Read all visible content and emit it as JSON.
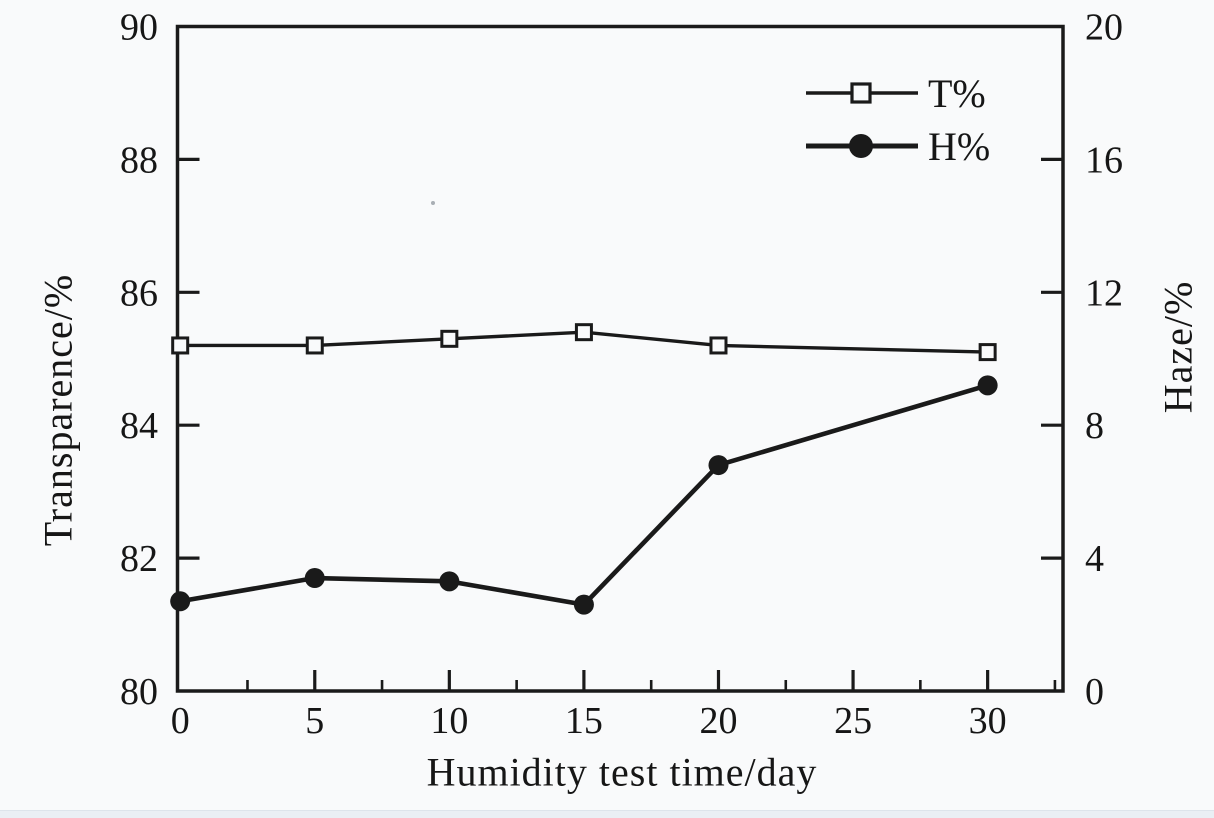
{
  "chart_data": {
    "type": "line",
    "title": "",
    "xlabel": "Humidity test time/day",
    "ylabel_left": "Transparence/%",
    "ylabel_right": "Haze/%",
    "xlim": [
      -0.1,
      32.8
    ],
    "ylim_left": [
      80,
      90
    ],
    "ylim_right": [
      0,
      20
    ],
    "x_major_ticks": [
      0,
      5,
      10,
      15,
      20,
      25,
      30
    ],
    "x_minor_ticks": [
      2.5,
      7.5,
      12.5,
      17.5,
      22.5,
      27.5,
      32.5
    ],
    "left_axis_ticks": [
      80,
      82,
      84,
      86,
      88,
      90
    ],
    "right_axis_ticks": [
      0,
      4,
      8,
      12,
      16,
      20
    ],
    "grid": false,
    "legend_position": "upper-right-inside",
    "ink_color": "#1a1a1a",
    "background_color": "#f9fafb",
    "series": [
      {
        "name": "T%",
        "axis": "left",
        "marker": "open-square",
        "x": [
          0,
          5,
          10,
          15,
          20,
          30
        ],
        "values": [
          85.2,
          85.2,
          85.3,
          85.4,
          85.2,
          85.1
        ]
      },
      {
        "name": "H%",
        "axis": "right",
        "marker": "filled-circle",
        "x": [
          0,
          5,
          10,
          15,
          20,
          30
        ],
        "values": [
          2.7,
          3.4,
          3.3,
          2.6,
          6.8,
          9.2
        ]
      }
    ]
  }
}
